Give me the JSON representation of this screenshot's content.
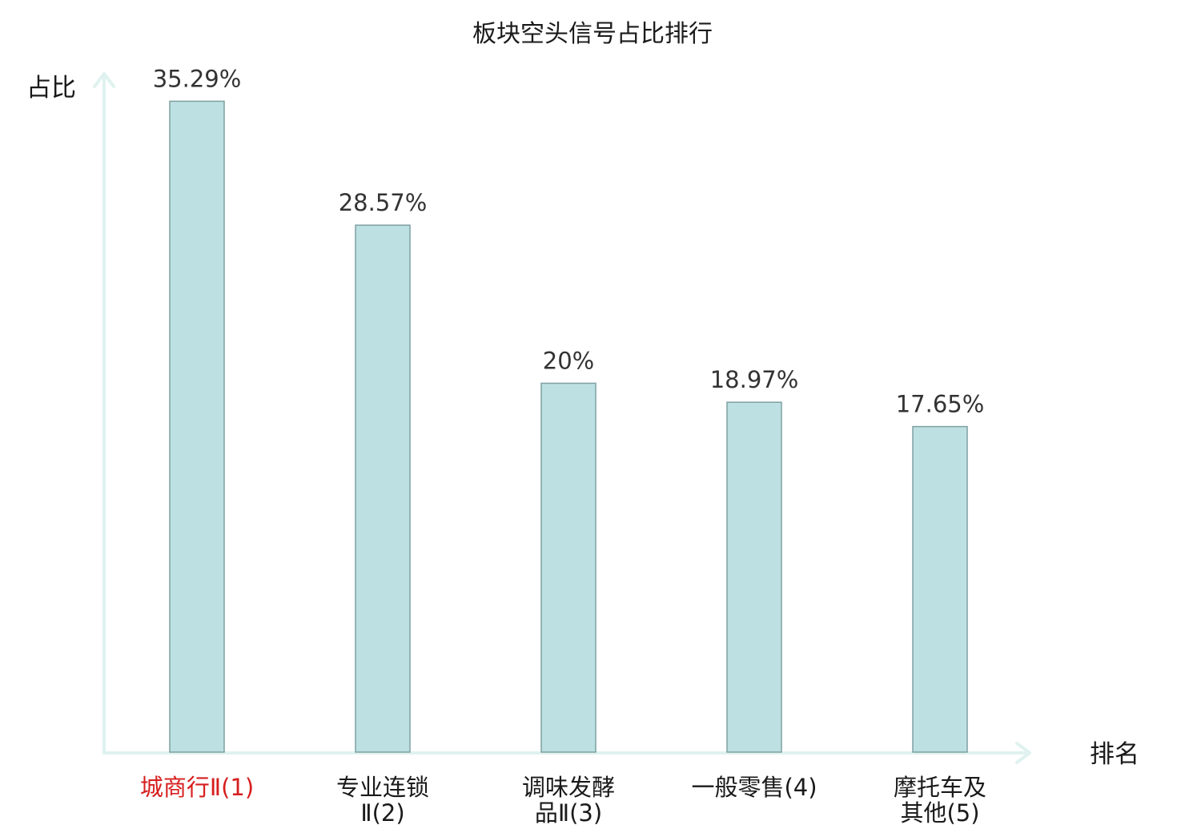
{
  "chart_data": {
    "type": "bar",
    "title": "板块空头信号占比排行",
    "ylabel": "占比",
    "xlabel": "排名",
    "ylim": [
      0,
      38
    ],
    "grid": false,
    "categories": [
      {
        "lines": [
          "城商行Ⅱ(1)"
        ],
        "highlight": true
      },
      {
        "lines": [
          "专业连锁",
          "Ⅱ(2)"
        ],
        "highlight": false
      },
      {
        "lines": [
          "调味发酵",
          "品Ⅱ(3)"
        ],
        "highlight": false
      },
      {
        "lines": [
          "一般零售(4)"
        ],
        "highlight": false
      },
      {
        "lines": [
          "摩托车及",
          "其他(5)"
        ],
        "highlight": false
      }
    ],
    "values": [
      35.29,
      28.57,
      20,
      18.97,
      17.65
    ],
    "value_labels": [
      "35.29%",
      "28.57%",
      "20%",
      "18.97%",
      "17.65%"
    ],
    "colors": {
      "bar_fill": "#bde0e2",
      "bar_stroke": "#7fa0a2",
      "axis": "#dff2ef",
      "highlight": "#d71e1e"
    }
  }
}
